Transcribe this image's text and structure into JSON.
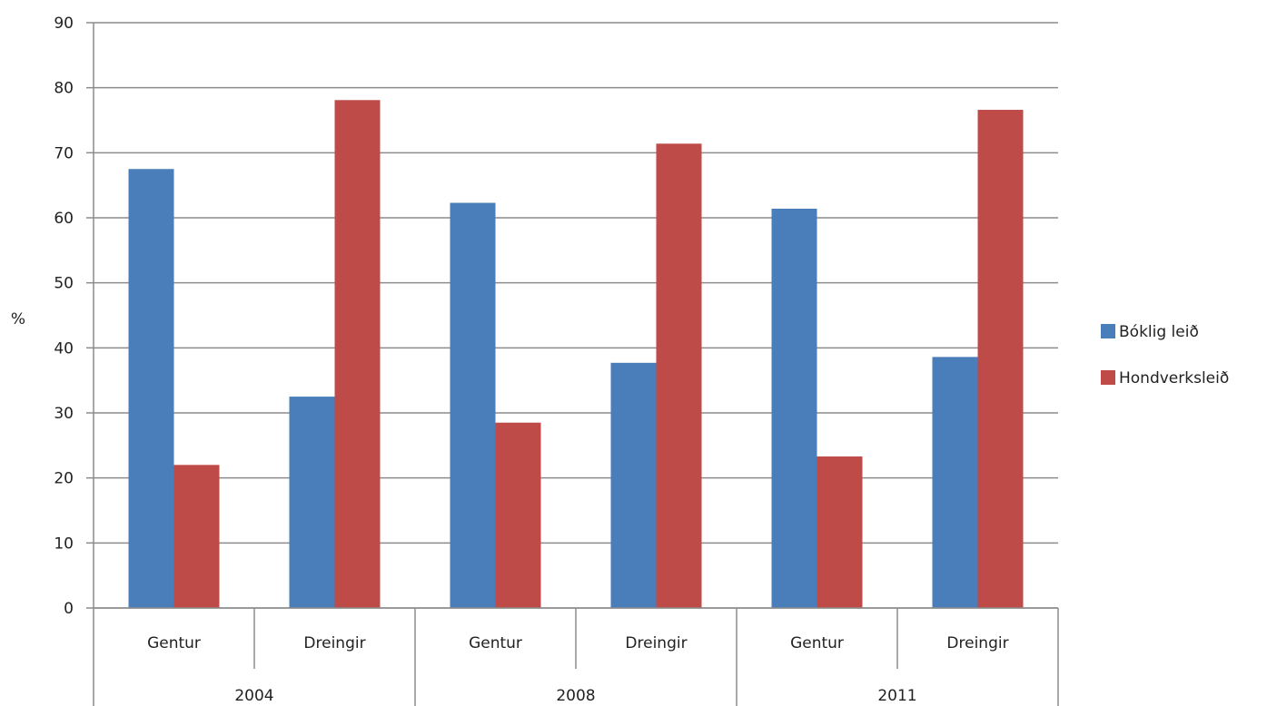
{
  "chart_data": {
    "type": "bar",
    "ylabel": "%",
    "ylim": [
      0,
      90
    ],
    "yticks": [
      "0",
      "10",
      "20",
      "30",
      "40",
      "50",
      "60",
      "70",
      "80",
      "90"
    ],
    "grid": true,
    "legend": "right",
    "groups": [
      {
        "label": "2004",
        "categories": [
          "Gentur",
          "Dreingir"
        ]
      },
      {
        "label": "2008",
        "categories": [
          "Gentur",
          "Dreingir"
        ]
      },
      {
        "label": "2011",
        "categories": [
          "Gentur",
          "Dreingir"
        ]
      }
    ],
    "series": [
      {
        "name": "Bóklig leið",
        "color": "#4a7ebb",
        "values": [
          67.5,
          32.5,
          62.3,
          37.7,
          61.4,
          38.6
        ]
      },
      {
        "name": "Hondverksleið",
        "color": "#be4b48",
        "values": [
          22,
          78.1,
          28.5,
          71.4,
          23.3,
          76.6
        ]
      }
    ]
  }
}
